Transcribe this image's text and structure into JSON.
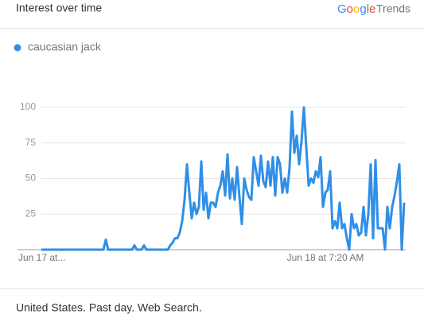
{
  "header": {
    "title": "Interest over time",
    "brand": "Google",
    "brand_suffix": "Trends"
  },
  "chart_data": {
    "type": "line",
    "categories": [
      "Jun 17 at...",
      null,
      null,
      null,
      null,
      null,
      null,
      null,
      null,
      null,
      null,
      null,
      null,
      null,
      null,
      null,
      null,
      null,
      null,
      null,
      null,
      null,
      null,
      null,
      null,
      null,
      null,
      null,
      null,
      null,
      null,
      null,
      null,
      null,
      null,
      null,
      null,
      null,
      null,
      null,
      null,
      null,
      null,
      null,
      null,
      null,
      null,
      null,
      null,
      null,
      null,
      null,
      null,
      null,
      null,
      null,
      null,
      null,
      null,
      null,
      null,
      null,
      null,
      null,
      null,
      null,
      null,
      null,
      null,
      null,
      null,
      null,
      null,
      null,
      null,
      null,
      null,
      null,
      null,
      null,
      null,
      null,
      null,
      null,
      null,
      null,
      null,
      null,
      null,
      null,
      null,
      null,
      null,
      null,
      null,
      null,
      null,
      null,
      null,
      null,
      null,
      null,
      null,
      null,
      null,
      null,
      null,
      null,
      null,
      null,
      null,
      null,
      null,
      null,
      null,
      null,
      null,
      null,
      null,
      "Jun 18 at 7:20 AM",
      null,
      null,
      null,
      null,
      null,
      null,
      null,
      null,
      null,
      null,
      null,
      null,
      null,
      null,
      null,
      null,
      null,
      null,
      null,
      null,
      null,
      null,
      null,
      null,
      null,
      null,
      null,
      null,
      null,
      null,
      null,
      null,
      null
    ],
    "series": [
      {
        "name": "caucasian jack",
        "color": "#2f8fe8",
        "values": [
          0,
          0,
          0,
          0,
          0,
          0,
          0,
          0,
          0,
          0,
          0,
          0,
          0,
          0,
          0,
          0,
          0,
          0,
          0,
          0,
          0,
          0,
          0,
          0,
          0,
          0,
          0,
          7,
          0,
          0,
          0,
          0,
          0,
          0,
          0,
          0,
          0,
          0,
          0,
          3,
          0,
          0,
          0,
          3,
          0,
          0,
          0,
          0,
          0,
          0,
          0,
          0,
          0,
          0,
          3,
          5,
          8,
          8,
          12,
          20,
          35,
          60,
          40,
          22,
          33,
          25,
          30,
          62,
          28,
          40,
          22,
          33,
          33,
          30,
          40,
          45,
          55,
          38,
          67,
          36,
          50,
          35,
          58,
          37,
          18,
          50,
          42,
          37,
          35,
          65,
          55,
          45,
          66,
          48,
          44,
          62,
          45,
          65,
          38,
          65,
          60,
          40,
          50,
          40,
          58,
          97,
          68,
          80,
          60,
          76,
          100,
          72,
          45,
          50,
          47,
          55,
          51,
          65,
          30,
          40,
          42,
          55,
          15,
          20,
          15,
          33,
          15,
          18,
          8,
          0,
          25,
          15,
          18,
          10,
          12,
          30,
          10,
          25,
          60,
          8,
          63,
          15,
          15,
          15,
          0,
          30,
          15,
          30,
          38,
          48,
          60,
          0,
          33
        ]
      }
    ],
    "ylim": [
      0,
      100
    ],
    "yticks": [
      25,
      50,
      75,
      100
    ],
    "grid": true
  },
  "footer": "United States. Past day. Web Search."
}
